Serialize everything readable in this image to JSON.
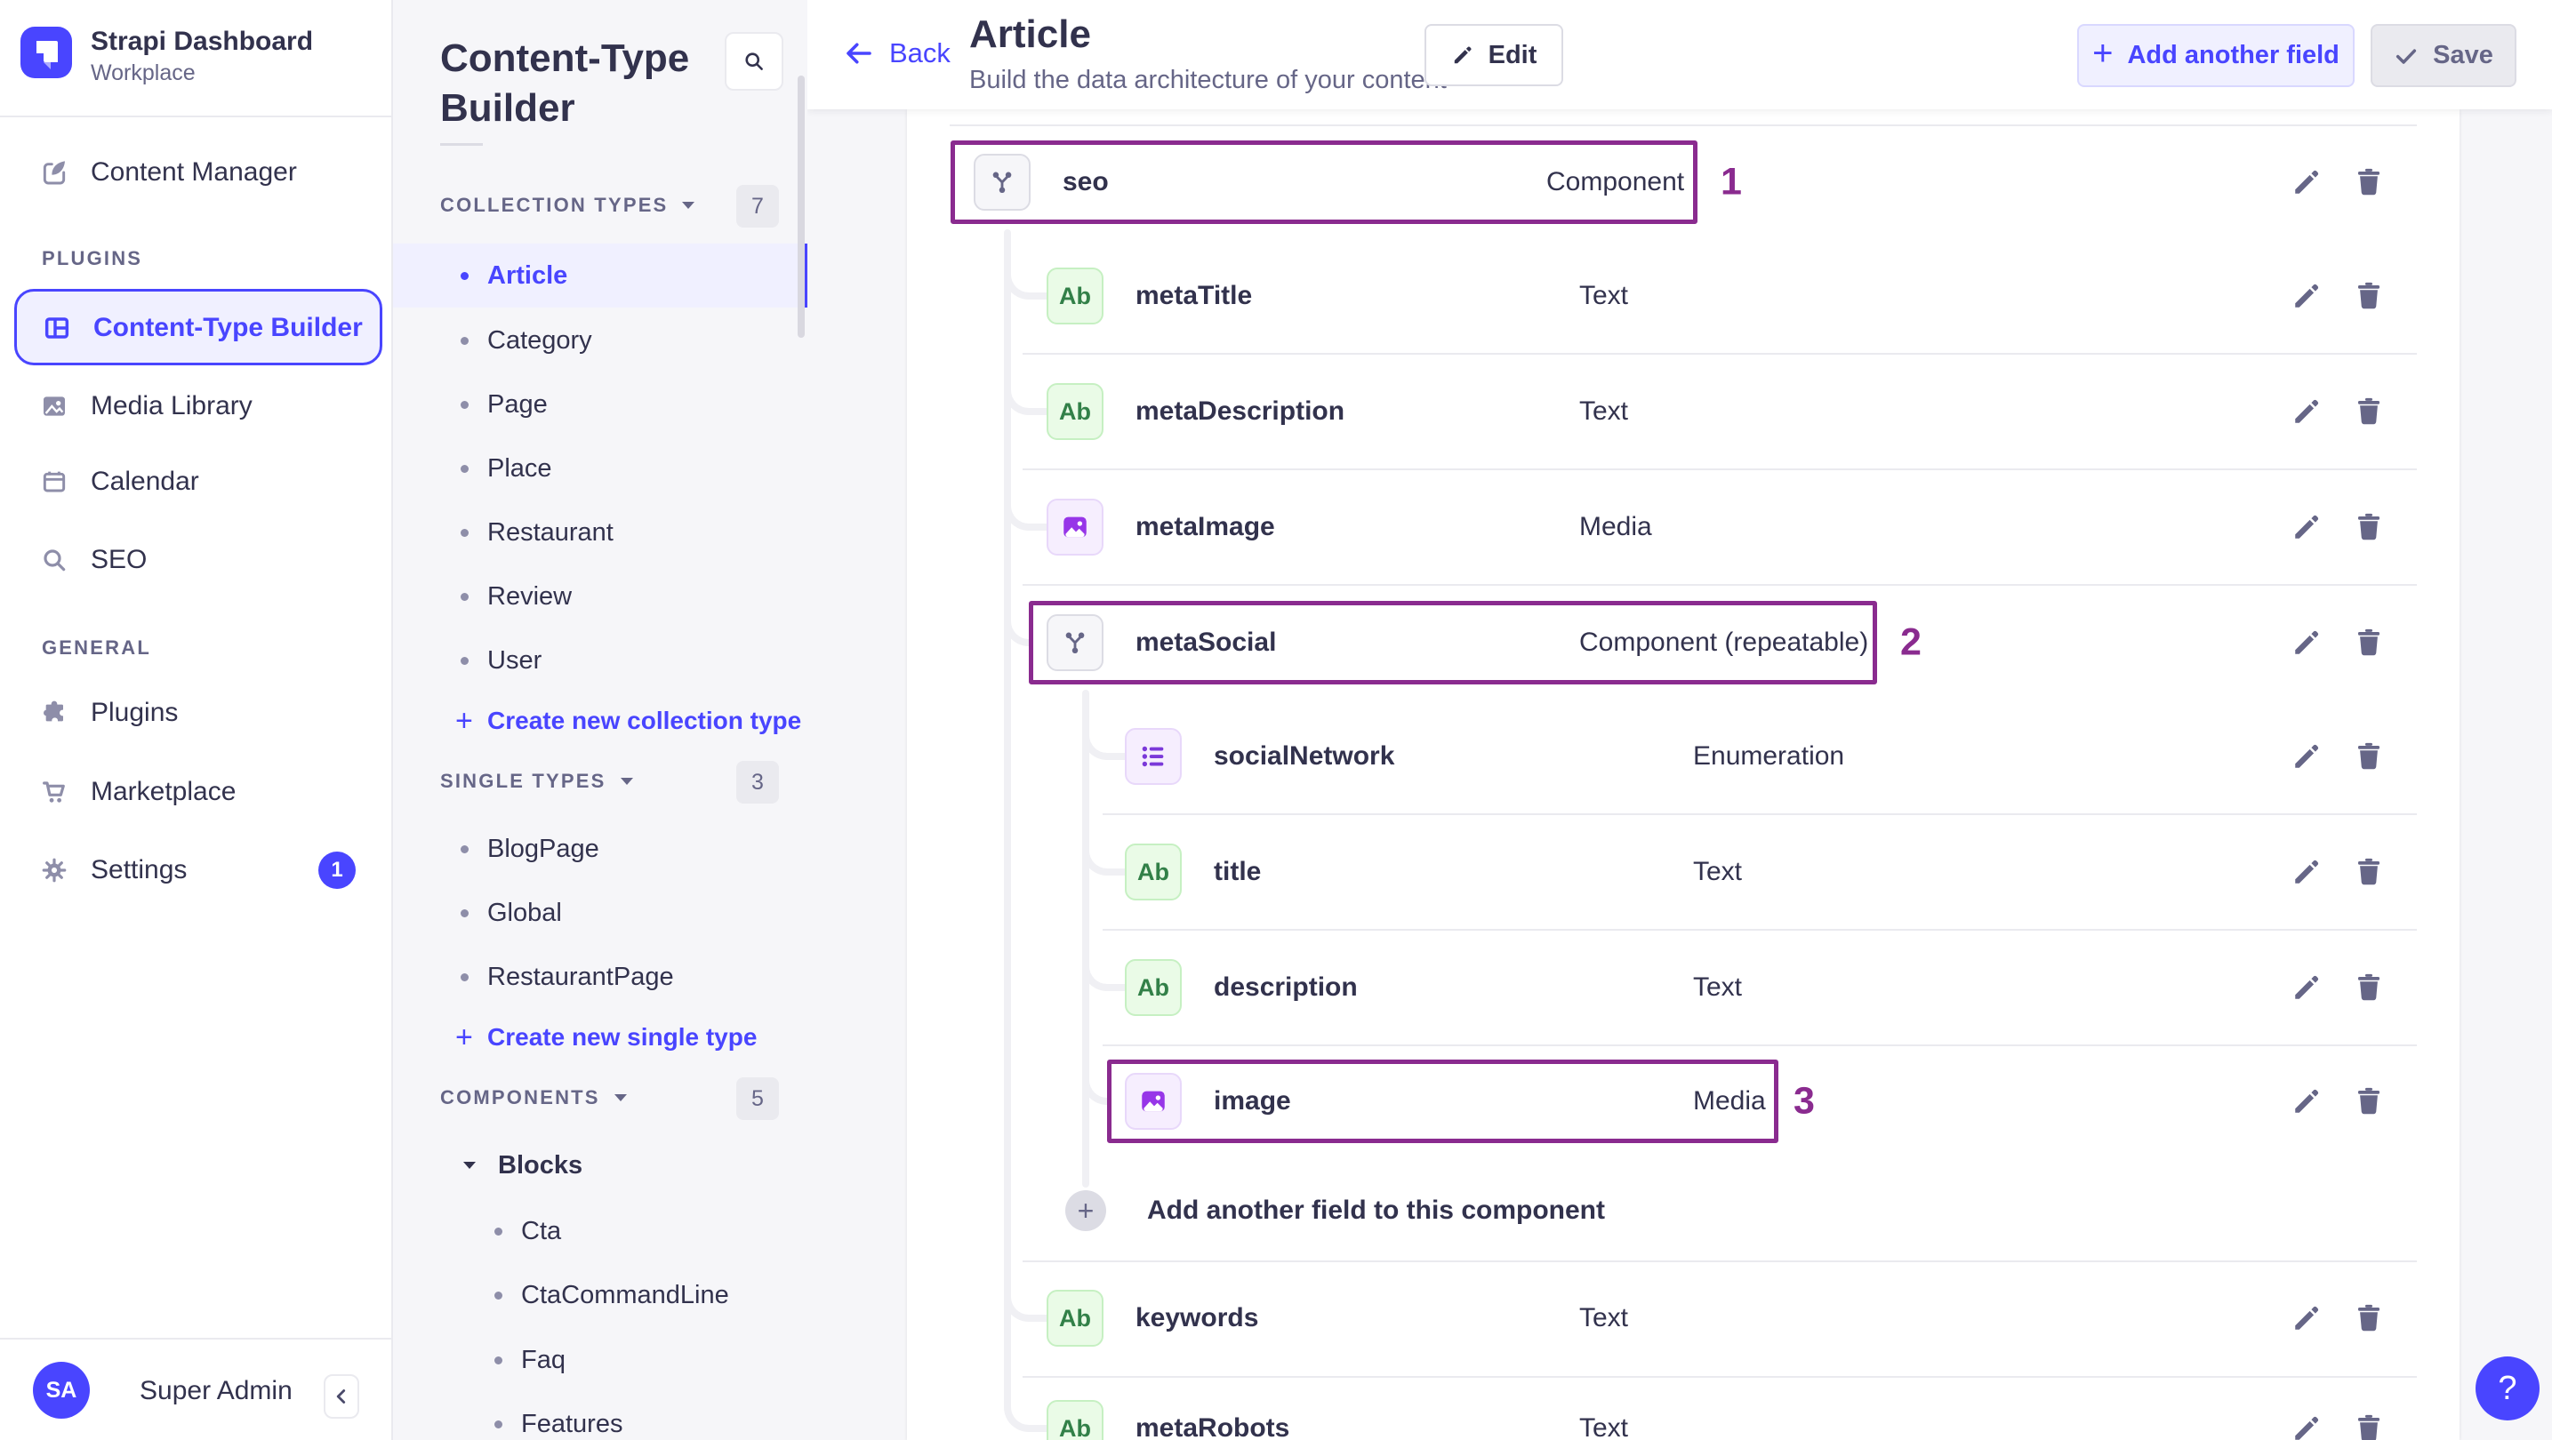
{
  "app": {
    "name": "Strapi Dashboard",
    "workspace": "Workplace",
    "user_initials": "SA",
    "user_name": "Super Admin",
    "help_label": "?"
  },
  "nav": {
    "content_manager": "Content Manager",
    "plugins_section": "PLUGINS",
    "general_section": "GENERAL",
    "plugins_items": [
      "Content-Type Builder",
      "Media Library",
      "Calendar",
      "SEO"
    ],
    "general_items": [
      "Plugins",
      "Marketplace",
      "Settings"
    ],
    "settings_badge": "1"
  },
  "subnav": {
    "title": "Content-Type Builder",
    "collection": {
      "label": "COLLECTION TYPES",
      "count": "7",
      "items": [
        "Article",
        "Category",
        "Page",
        "Place",
        "Restaurant",
        "Review",
        "User"
      ],
      "active_item": "Article",
      "create": "Create new collection type"
    },
    "single": {
      "label": "SINGLE TYPES",
      "count": "3",
      "items": [
        "BlogPage",
        "Global",
        "RestaurantPage"
      ],
      "create": "Create new single type"
    },
    "components": {
      "label": "COMPONENTS",
      "count": "5",
      "group": "Blocks",
      "items": [
        "Cta",
        "CtaCommandLine",
        "Faq",
        "Features"
      ]
    }
  },
  "header": {
    "back": "Back",
    "title": "Article",
    "subtitle": "Build the data architecture of your content",
    "edit": "Edit",
    "add_field": "Add another field",
    "save": "Save"
  },
  "fields": {
    "text_icon_label": "Ab",
    "add_button": "Add another field to this component",
    "rows": [
      {
        "name": "seo",
        "type": "Component",
        "icon": "component",
        "level": 0,
        "annotation": "1"
      },
      {
        "name": "metaTitle",
        "type": "Text",
        "icon": "text",
        "level": 1
      },
      {
        "name": "metaDescription",
        "type": "Text",
        "icon": "text",
        "level": 1
      },
      {
        "name": "metaImage",
        "type": "Media",
        "icon": "media",
        "level": 1
      },
      {
        "name": "metaSocial",
        "type": "Component (repeatable)",
        "icon": "component",
        "level": 1,
        "annotation": "2"
      },
      {
        "name": "socialNetwork",
        "type": "Enumeration",
        "icon": "enum",
        "level": 2
      },
      {
        "name": "title",
        "type": "Text",
        "icon": "text",
        "level": 2
      },
      {
        "name": "description",
        "type": "Text",
        "icon": "text",
        "level": 2
      },
      {
        "name": "image",
        "type": "Media",
        "icon": "media",
        "level": 2,
        "annotation": "3"
      },
      {
        "name": "keywords",
        "type": "Text",
        "icon": "text",
        "level": 1
      },
      {
        "name": "metaRobots",
        "type": "Text",
        "icon": "text",
        "level": 1
      }
    ]
  },
  "colors": {
    "brand": "#4945ff",
    "brand_light_bg": "#f0f0ff",
    "annotation": "#8a2b8f",
    "text_dark": "#32324d",
    "text_muted": "#666687",
    "divider": "#eaeaef",
    "green_icon_text": "#328048",
    "purple_glyph": "#9736e8"
  }
}
